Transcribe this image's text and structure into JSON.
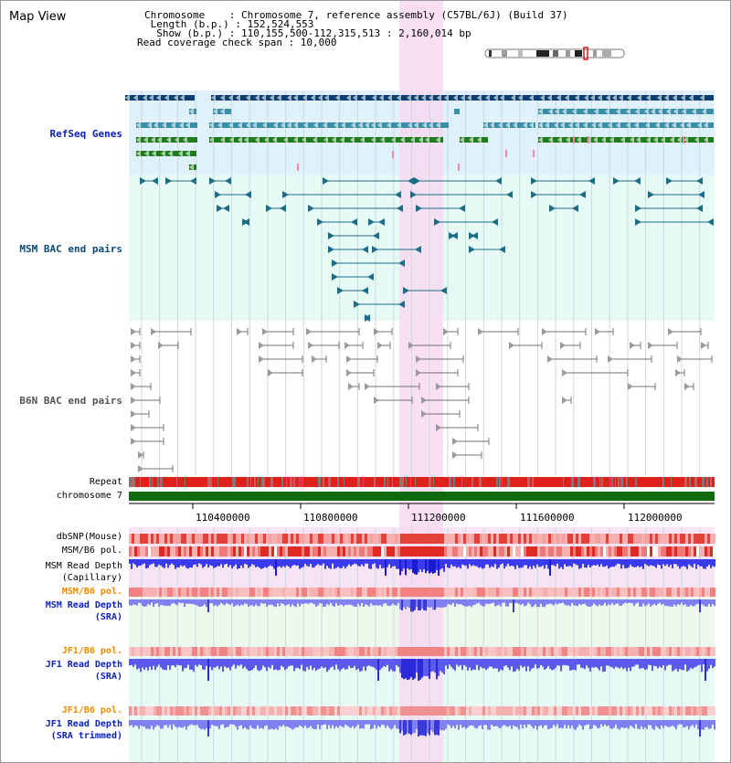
{
  "panel": {
    "title": "Map View",
    "info_lines": [
      "Chromosome    : Chromosome 7, reference assembly (C57BL/6J) (Build 37)",
      " Length (b.p.) : 152,524,553",
      "  Show (b.p.) : 110,155,500-112,315,513 : 2,160,014 bp",
      "Read coverage check span : 10,000"
    ]
  },
  "tracks": {
    "refseq": "RefSeq Genes",
    "msm_bac": "MSM BAC end pairs",
    "b6n_bac": "B6N BAC end pairs",
    "repeat": "Repeat",
    "chromosome": "chromosome 7",
    "dbsnp": "dbSNP(Mouse)",
    "msm_pol": "MSM/B6 pol.",
    "msm_depth_cap_1": "MSM Read Depth",
    "msm_depth_cap_2": "(Capillary)",
    "msm_pol2": "MSM/B6 pol.",
    "msm_depth_sra_1": "MSM Read Depth",
    "msm_depth_sra_2": "(SRA)",
    "jf1_pol": "JF1/B6 pol.",
    "jf1_depth_1": "JF1 Read Depth",
    "jf1_depth_2": "(SRA)",
    "jf1_pol2": "JF1/B6 pol.",
    "jf1_trim_1": "JF1 Read Depth",
    "jf1_trim_2": "(SRA trimmed)"
  },
  "axis": {
    "ticks": [
      "110400000",
      "110800000",
      "111200000",
      "111600000",
      "112000000"
    ]
  },
  "colors": {
    "refseq_bg": "#dff1fb",
    "bac_bg": "#e6fbf6",
    "highlight": "#f7d9f1",
    "refseq_dark": "#0d3f70",
    "refseq_teal": "#3a8fa8",
    "refseq_green": "#1e7b1e",
    "msm_bac_line": "#1d6d88",
    "b6n_line": "#707070",
    "repeat_red": "#e0201a",
    "chrom_green": "#0d6b0d",
    "label_blue": "#0a1fbf",
    "label_orange": "#f08a00",
    "label_teal": "#0b4a78",
    "depth_blue": "#3a3af0",
    "depth_light": "#7878f0"
  }
}
